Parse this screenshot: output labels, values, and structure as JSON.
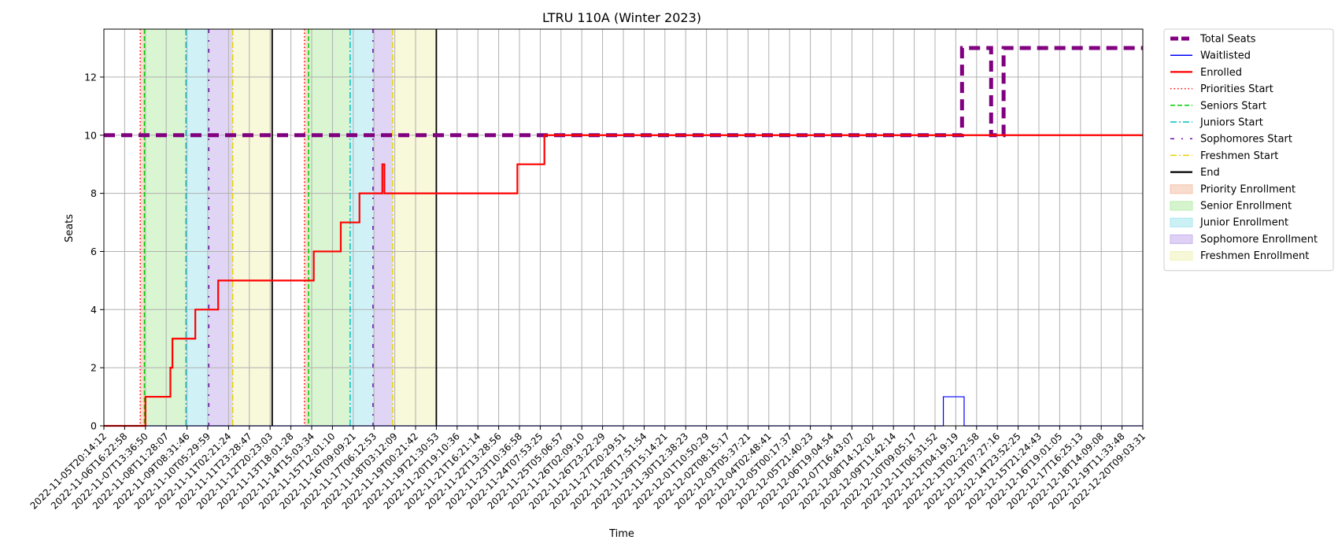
{
  "chart_data": {
    "type": "line",
    "title": "LTRU 110A (Winter 2023)",
    "xlabel": "Time",
    "ylabel": "Seats",
    "ylim": [
      0,
      13.65
    ],
    "yticks": [
      0,
      2,
      4,
      6,
      8,
      10,
      12
    ],
    "grid": true,
    "legend_position": "outside-right-top",
    "x_tick_labels": [
      "2022-11-05T20:14:12",
      "2022-11-06T16:22:58",
      "2022-11-07T13:36:50",
      "2022-11-08T11:28:07",
      "2022-11-09T08:31:46",
      "2022-11-10T05:29:59",
      "2022-11-11T02:21:24",
      "2022-11-11T23:28:47",
      "2022-11-12T20:23:03",
      "2022-11-13T18:01:28",
      "2022-11-14T15:03:34",
      "2022-11-15T12:01:10",
      "2022-11-16T09:09:21",
      "2022-11-17T06:12:53",
      "2022-11-18T03:12:09",
      "2022-11-19T00:21:42",
      "2022-11-19T21:30:53",
      "2022-11-20T19:10:36",
      "2022-11-21T16:21:14",
      "2022-11-22T13:28:56",
      "2022-11-23T10:36:58",
      "2022-11-24T07:53:25",
      "2022-11-25T05:06:57",
      "2022-11-26T02:09:10",
      "2022-11-26T23:22:29",
      "2022-11-27T20:29:51",
      "2022-11-28T17:51:54",
      "2022-11-29T15:14:21",
      "2022-11-30T12:38:23",
      "2022-12-01T10:50:29",
      "2022-12-02T08:15:17",
      "2022-12-03T05:37:21",
      "2022-12-04T02:48:41",
      "2022-12-05T00:17:37",
      "2022-12-05T21:40:23",
      "2022-12-06T19:04:54",
      "2022-12-07T16:43:07",
      "2022-12-08T14:12:02",
      "2022-12-09T11:42:14",
      "2022-12-10T09:05:17",
      "2022-12-11T06:31:52",
      "2022-12-12T04:19:19",
      "2022-12-13T02:22:58",
      "2022-12-13T07:27:16",
      "2022-12-14T23:52:25",
      "2022-12-15T21:24:43",
      "2022-12-16T19:01:05",
      "2022-12-17T16:25:13",
      "2022-12-18T14:09:08",
      "2022-12-19T11:33:48",
      "2022-12-20T09:03:31"
    ],
    "x_range": [
      0,
      50
    ],
    "series": [
      {
        "name": "Total Seats",
        "color": "#800080",
        "style": "dashed-thick",
        "points": [
          [
            0,
            10
          ],
          [
            41.3,
            10
          ],
          [
            41.3,
            13
          ],
          [
            42.7,
            13
          ],
          [
            42.7,
            10
          ],
          [
            43.3,
            10
          ],
          [
            43.3,
            13
          ],
          [
            50,
            13
          ]
        ]
      },
      {
        "name": "Waitlisted",
        "color": "#0000ff",
        "style": "solid-thin",
        "points": [
          [
            0,
            0
          ],
          [
            40.4,
            0
          ],
          [
            40.4,
            1
          ],
          [
            41.4,
            1
          ],
          [
            41.4,
            0
          ],
          [
            50,
            0
          ]
        ]
      },
      {
        "name": "Enrolled",
        "color": "#ff0000",
        "style": "solid",
        "points": [
          [
            0,
            0
          ],
          [
            2.0,
            0
          ],
          [
            2.0,
            1
          ],
          [
            3.2,
            1
          ],
          [
            3.2,
            2
          ],
          [
            3.3,
            2
          ],
          [
            3.3,
            3
          ],
          [
            4.4,
            3
          ],
          [
            4.4,
            4
          ],
          [
            5.5,
            4
          ],
          [
            5.5,
            5
          ],
          [
            10.1,
            5
          ],
          [
            10.1,
            6
          ],
          [
            11.4,
            6
          ],
          [
            11.4,
            7
          ],
          [
            12.3,
            7
          ],
          [
            12.3,
            8
          ],
          [
            13.4,
            8
          ],
          [
            13.4,
            9
          ],
          [
            13.5,
            9
          ],
          [
            13.5,
            8
          ],
          [
            19.9,
            8
          ],
          [
            19.9,
            9
          ],
          [
            21.2,
            9
          ],
          [
            21.2,
            10
          ],
          [
            50,
            10
          ]
        ]
      }
    ],
    "vertical_lines": [
      {
        "name": "Priorities Start",
        "color": "#ff0000",
        "style": "dotted",
        "x": [
          1.75,
          9.65
        ]
      },
      {
        "name": "Seniors Start",
        "color": "#00cc00",
        "style": "dashed",
        "x": [
          1.95,
          9.85
        ]
      },
      {
        "name": "Juniors Start",
        "color": "#00bfbf",
        "style": "dashdot",
        "x": [
          3.95,
          11.85
        ]
      },
      {
        "name": "Sophomores Start",
        "color": "#6a0dad",
        "style": "loosely-dashdot",
        "x": [
          5.05,
          12.95
        ]
      },
      {
        "name": "Freshmen Start",
        "color": "#e6d300",
        "style": "dashdot",
        "x": [
          6.2,
          13.9
        ]
      },
      {
        "name": "End",
        "color": "#000000",
        "style": "solid",
        "x": [
          8.1,
          16.0
        ]
      }
    ],
    "spans": [
      {
        "name": "Priority Enrollment",
        "color": "#f4c4ac",
        "ranges": [
          [
            1.75,
            1.95
          ],
          [
            9.65,
            9.85
          ]
        ]
      },
      {
        "name": "Senior Enrollment",
        "color": "#b9ecad",
        "ranges": [
          [
            1.95,
            3.95
          ],
          [
            9.85,
            11.85
          ]
        ]
      },
      {
        "name": "Junior Enrollment",
        "color": "#a9e7ef",
        "ranges": [
          [
            3.95,
            5.05
          ],
          [
            11.85,
            12.95
          ]
        ]
      },
      {
        "name": "Sophomore Enrollment",
        "color": "#c9b2ef",
        "ranges": [
          [
            5.05,
            6.2
          ],
          [
            12.95,
            13.9
          ]
        ]
      },
      {
        "name": "Freshmen Enrollment",
        "color": "#f2f3bd",
        "ranges": [
          [
            6.2,
            8.1
          ],
          [
            13.9,
            16.0
          ]
        ]
      }
    ],
    "legend": [
      {
        "label": "Total Seats",
        "kind": "line",
        "color": "#800080",
        "style": "dashed-thick"
      },
      {
        "label": "Waitlisted",
        "kind": "line",
        "color": "#0000ff",
        "style": "solid-thin"
      },
      {
        "label": "Enrolled",
        "kind": "line",
        "color": "#ff0000",
        "style": "solid"
      },
      {
        "label": "Priorities Start",
        "kind": "line",
        "color": "#ff0000",
        "style": "dotted"
      },
      {
        "label": "Seniors Start",
        "kind": "line",
        "color": "#00cc00",
        "style": "dashed"
      },
      {
        "label": "Juniors Start",
        "kind": "line",
        "color": "#00bfbf",
        "style": "dashdot"
      },
      {
        "label": "Sophomores Start",
        "kind": "line",
        "color": "#6a0dad",
        "style": "loosely-dashdot"
      },
      {
        "label": "Freshmen Start",
        "kind": "line",
        "color": "#e6d300",
        "style": "dashdot"
      },
      {
        "label": "End",
        "kind": "line",
        "color": "#000000",
        "style": "solid"
      },
      {
        "label": "Priority Enrollment",
        "kind": "patch",
        "color": "#f4c4ac"
      },
      {
        "label": "Senior Enrollment",
        "kind": "patch",
        "color": "#b9ecad"
      },
      {
        "label": "Junior Enrollment",
        "kind": "patch",
        "color": "#a9e7ef"
      },
      {
        "label": "Sophomore Enrollment",
        "kind": "patch",
        "color": "#c9b2ef"
      },
      {
        "label": "Freshmen Enrollment",
        "kind": "patch",
        "color": "#f2f3bd"
      }
    ]
  }
}
